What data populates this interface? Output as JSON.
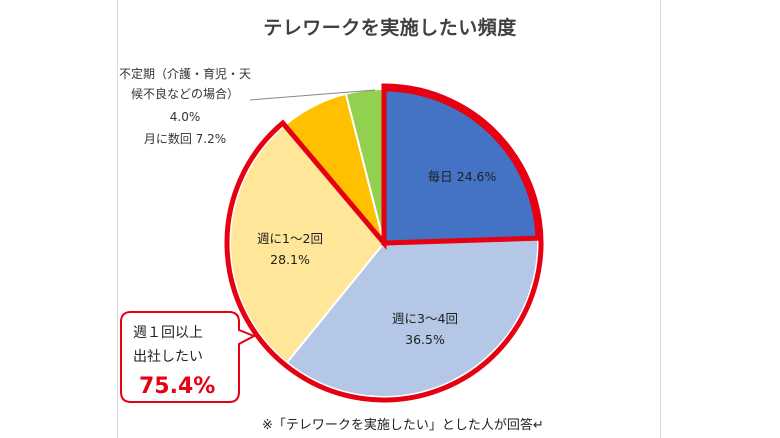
{
  "chart_data": {
    "type": "pie",
    "title": "テレワークを実施したい頻度",
    "slices": [
      {
        "label": "毎日",
        "value": 24.6,
        "display": "24.6%",
        "color": "#4472c4"
      },
      {
        "label": "週に3～4回",
        "value": 36.5,
        "display": "36.5%",
        "color": "#b4c7e7"
      },
      {
        "label": "週に1～2回",
        "value": 28.1,
        "display": "28.1%",
        "color": "#ffe699"
      },
      {
        "label": "月に数回",
        "value": 7.2,
        "display": "7.2%",
        "color": "#ffc000"
      },
      {
        "label": "不定期（介護・育児・天候不良などの場合）",
        "value": 4.0,
        "display": "4.0%",
        "color": "#92d050"
      }
    ],
    "highlight_color": "#e60012"
  },
  "labels": {
    "mainichi": "毎日 24.6%",
    "shu34_name": "週に3～4回",
    "shu34_value": "36.5%",
    "shu12_name": "週に1～2回",
    "shu12_value": "28.1%",
    "tsuki": "月に数回 7.2%",
    "futeiki_line1": "不定期（介護・育児・天",
    "futeiki_line2": "候不良などの場合）",
    "futeiki_value": "4.0%"
  },
  "callout": {
    "line1": "週１回以上",
    "line2": "出社したい",
    "value": "75.4%"
  },
  "footnote": "※「テレワークを実施したい」とした人が回答↵"
}
